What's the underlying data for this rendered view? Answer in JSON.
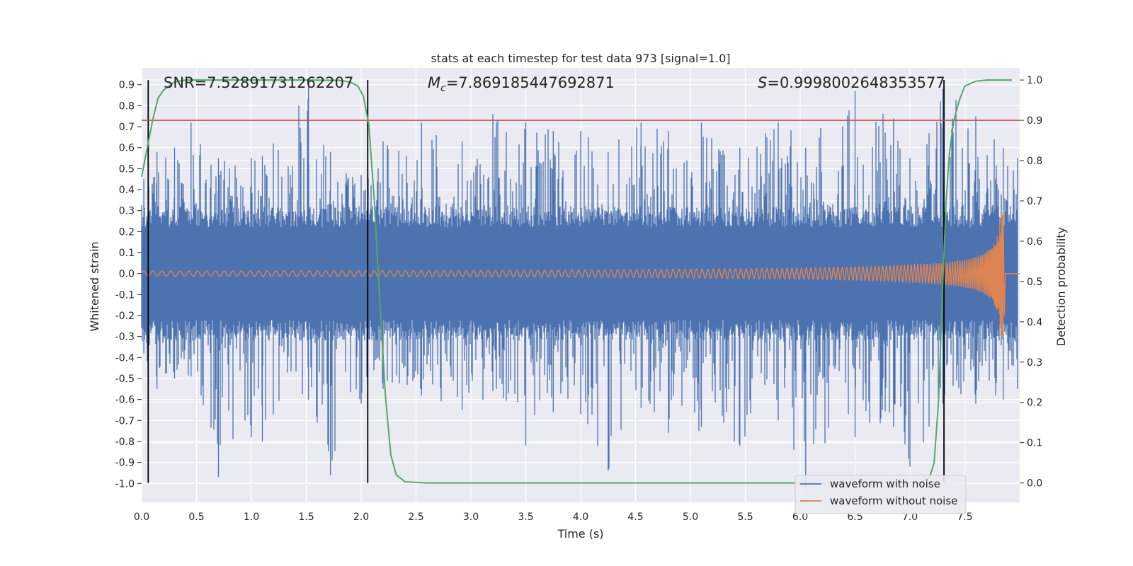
{
  "chart_data": {
    "type": "line",
    "title": "stats at each timestep for test data 973 [signal=1.0]",
    "xlabel": "Time (s)",
    "ylabel": "Whitened strain",
    "y2label": "Detection probability",
    "xlim": [
      0.0,
      8.0
    ],
    "ylim": [
      -1.09,
      0.98
    ],
    "y2lim": [
      -0.048,
      1.03
    ],
    "xticks": [
      "0.0",
      "0.5",
      "1.0",
      "1.5",
      "2.0",
      "2.5",
      "3.0",
      "3.5",
      "4.0",
      "4.5",
      "5.0",
      "5.5",
      "6.0",
      "6.5",
      "7.0",
      "7.5"
    ],
    "yticks": [
      "0.9",
      "0.8",
      "0.7",
      "0.6",
      "0.5",
      "0.4",
      "0.3",
      "0.2",
      "0.1",
      "0.0",
      "-0.1",
      "-0.2",
      "-0.3",
      "-0.4",
      "-0.5",
      "-0.6",
      "-0.7",
      "-0.8",
      "-0.9",
      "-1.0"
    ],
    "y2ticks": [
      "1.0",
      "0.9",
      "0.8",
      "0.7",
      "0.6",
      "0.5",
      "0.4",
      "0.3",
      "0.2",
      "0.1",
      "0.0"
    ],
    "annotations": {
      "snr": "SNR=7.52891731262207",
      "mc_symbol": "M",
      "mc_sub": "c",
      "mc_value": "=7.869185447692871",
      "s_symbol": "S",
      "s_value": "=0.9998002648353577"
    },
    "threshold": {
      "value": 0.9,
      "axis": "right",
      "color": "#c44e52"
    },
    "vertical_markers": [
      0.06,
      2.06,
      7.31
    ],
    "series": [
      {
        "name": "waveform with noise",
        "color": "#4c72b0",
        "envelope_peaks": [
          [
            0.02,
            0.45,
            -0.38
          ],
          [
            0.14,
            0.58,
            -0.55
          ],
          [
            0.3,
            0.6,
            -0.5
          ],
          [
            0.45,
            0.72,
            -0.49
          ],
          [
            0.7,
            0.55,
            -0.97
          ],
          [
            1.0,
            0.55,
            -0.78
          ],
          [
            1.1,
            0.56,
            -0.8
          ],
          [
            1.2,
            0.62,
            -0.67
          ],
          [
            1.52,
            0.9,
            -0.6
          ],
          [
            1.72,
            0.58,
            -0.96
          ],
          [
            2.0,
            0.47,
            -0.62
          ],
          [
            2.2,
            0.63,
            -0.55
          ],
          [
            2.55,
            0.72,
            -0.58
          ],
          [
            2.92,
            0.63,
            -0.65
          ],
          [
            3.2,
            0.76,
            -0.56
          ],
          [
            3.5,
            0.72,
            -0.82
          ],
          [
            3.75,
            0.68,
            -0.66
          ],
          [
            4.0,
            0.68,
            -0.67
          ],
          [
            4.25,
            0.58,
            -0.94
          ],
          [
            4.55,
            0.72,
            -0.64
          ],
          [
            4.8,
            0.68,
            -0.76
          ],
          [
            5.1,
            0.72,
            -0.73
          ],
          [
            5.45,
            0.6,
            -0.82
          ],
          [
            5.8,
            0.72,
            -0.7
          ],
          [
            6.05,
            0.6,
            -1.02
          ],
          [
            6.5,
            0.87,
            -0.78
          ],
          [
            6.85,
            0.74,
            -0.73
          ],
          [
            7.0,
            0.55,
            -0.92
          ],
          [
            7.3,
            0.88,
            -0.62
          ],
          [
            7.6,
            0.75,
            -0.62
          ],
          [
            7.85,
            0.6,
            -0.6
          ],
          [
            7.98,
            0.55,
            -0.55
          ]
        ]
      },
      {
        "name": "waveform without noise",
        "color": "#dd8452",
        "chirp": {
          "t_merge": 7.85,
          "amp_start": 0.012,
          "amp_peak": 0.3,
          "neg_peak": -0.2,
          "ringdown_end": 7.87
        }
      },
      {
        "name": "detection probability",
        "color": "#55a868",
        "axis": "right",
        "x": [
          0.0,
          0.05,
          0.1,
          0.15,
          0.2,
          0.3,
          0.4,
          0.6,
          1.0,
          1.5,
          1.8,
          1.9,
          1.97,
          2.02,
          2.07,
          2.12,
          2.17,
          2.22,
          2.27,
          2.32,
          2.4,
          2.6,
          3.0,
          4.0,
          5.0,
          6.0,
          6.5,
          7.0,
          7.1,
          7.15,
          7.18,
          7.22,
          7.26,
          7.3,
          7.33,
          7.36,
          7.4,
          7.45,
          7.5,
          7.6,
          7.7,
          7.8,
          7.93
        ],
        "y": [
          0.76,
          0.83,
          0.9,
          0.955,
          0.975,
          0.995,
          1.0,
          1.0,
          1.0,
          1.0,
          0.999,
          0.995,
          0.985,
          0.96,
          0.89,
          0.7,
          0.45,
          0.22,
          0.07,
          0.02,
          0.003,
          0.0,
          0.0,
          0.0,
          0.0,
          0.0,
          0.0,
          0.001,
          0.003,
          0.006,
          0.015,
          0.05,
          0.2,
          0.5,
          0.7,
          0.82,
          0.9,
          0.95,
          0.985,
          0.997,
          1.0,
          1.0,
          1.0
        ]
      }
    ],
    "legend": {
      "position": "lower-right"
    },
    "grid": true
  }
}
